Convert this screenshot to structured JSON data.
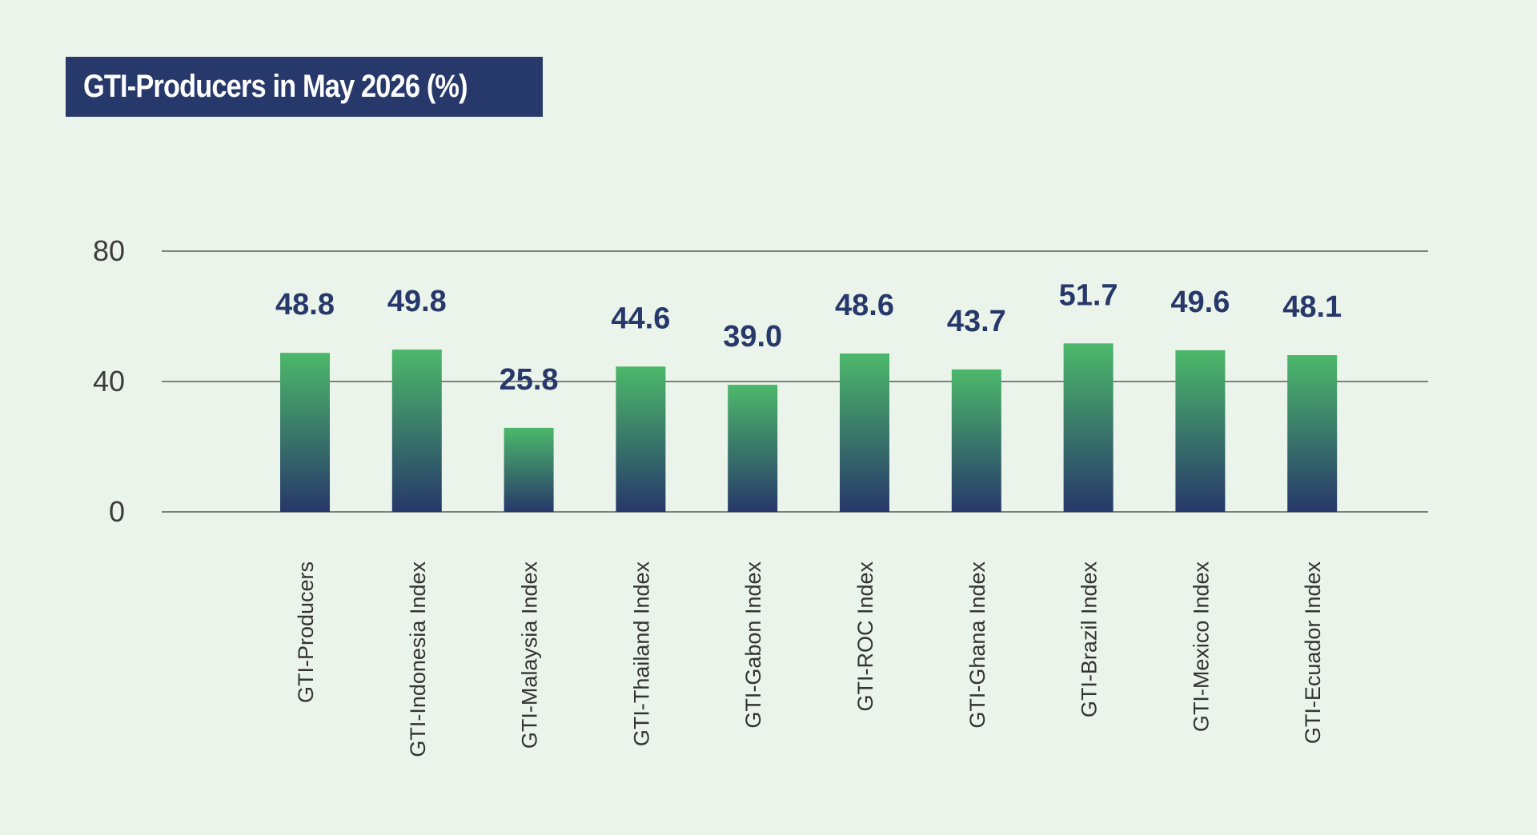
{
  "title": "GTI-Producers in May 2026 (%)",
  "colors": {
    "background": "#ebf4ea",
    "title_bg": "#27386a",
    "bar_top": "#4cb86a",
    "bar_bottom": "#27386a",
    "value_label": "#27386a"
  },
  "chart_data": {
    "type": "bar",
    "title": "GTI-Producers in May 2026 (%)",
    "xlabel": "",
    "ylabel": "",
    "ylim": [
      0,
      80
    ],
    "yticks": [
      0,
      40,
      80
    ],
    "grid": true,
    "categories": [
      "GTI-Producers",
      "GTI-Indonesia Index",
      "GTI-Malaysia Index",
      "GTI-Thailand Index",
      "GTI-Gabon Index",
      "GTI-ROC Index",
      "GTI-Ghana Index",
      "GTI-Brazil Index",
      "GTI-Mexico Index",
      "GTI-Ecuador Index"
    ],
    "values": [
      48.8,
      49.8,
      25.8,
      44.6,
      39.0,
      48.6,
      43.7,
      51.7,
      49.6,
      48.1
    ],
    "value_labels": [
      "48.8",
      "49.8",
      "25.8",
      "44.6",
      "39.0",
      "48.6",
      "43.7",
      "51.7",
      "49.6",
      "48.1"
    ]
  }
}
